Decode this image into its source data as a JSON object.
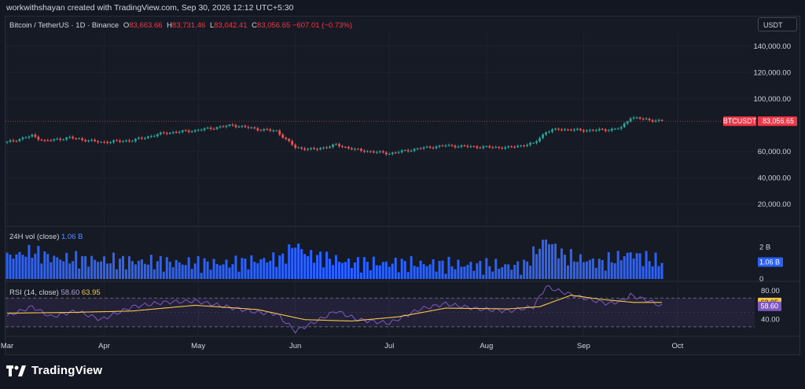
{
  "header": {
    "credit": "workwithshayan created with TradingView.com, Sep 30, 2026 12:12 UTC+5:30"
  },
  "legend": {
    "symbol": "Bitcoin / TetherUS · 1D · Binance",
    "open": "83,663.66",
    "high": "83,731.46",
    "low": "83,042.41",
    "close": "83,056.65",
    "change": "−607.01 (−0.73%)"
  },
  "currency": "USDT",
  "volume_legend": {
    "label": "24H vol (close)",
    "value": "1.06 B"
  },
  "rsi_legend": {
    "label": "RSI (14, close)",
    "rsi": "58.60",
    "ma": "63.95"
  },
  "brand": {
    "name": "TradingView"
  },
  "colors": {
    "up": "#26a69a",
    "down": "#ef5350",
    "volume": "#2962ff",
    "rsi": "#7e57c2",
    "rsi_ma": "#f7c744"
  },
  "chart_data": [
    {
      "type": "candlestick",
      "title": "Bitcoin / TetherUS · 1D · Binance",
      "yticks": [
        "140,000.00",
        "120,000.00",
        "100,000.00",
        "60,000.00",
        "40,000.00",
        "20,000.00"
      ],
      "ytick_values": [
        140000,
        120000,
        100000,
        60000,
        40000,
        20000
      ],
      "ylim": [
        5000,
        150000
      ],
      "last_price_label": "BTCUSDT",
      "last_price": "83,056.65",
      "last_price_value": 83056.65,
      "xticks": [
        "Mar",
        "Apr",
        "May",
        "Jun",
        "Jul",
        "Aug",
        "Sep",
        "Oct"
      ],
      "xtick_positions": [
        0,
        31,
        61,
        92,
        122,
        153,
        184,
        214
      ],
      "days": 210,
      "close_anchors": [
        [
          0,
          67000
        ],
        [
          8,
          72000
        ],
        [
          12,
          68000
        ],
        [
          20,
          70500
        ],
        [
          30,
          67000
        ],
        [
          40,
          68500
        ],
        [
          50,
          74000
        ],
        [
          60,
          76000
        ],
        [
          72,
          80000
        ],
        [
          80,
          77000
        ],
        [
          86,
          75500
        ],
        [
          92,
          63000
        ],
        [
          98,
          61500
        ],
        [
          105,
          65000
        ],
        [
          112,
          61000
        ],
        [
          122,
          58500
        ],
        [
          132,
          62500
        ],
        [
          140,
          64500
        ],
        [
          150,
          63500
        ],
        [
          160,
          63000
        ],
        [
          168,
          66000
        ],
        [
          172,
          75000
        ],
        [
          176,
          77000
        ],
        [
          184,
          76000
        ],
        [
          192,
          76500
        ],
        [
          196,
          78000
        ],
        [
          199,
          86000
        ],
        [
          205,
          84000
        ],
        [
          209,
          83056
        ]
      ]
    },
    {
      "type": "bar",
      "name": "24H vol (close)",
      "ytick_labels": [
        "2 B",
        "0"
      ],
      "ytick_values": [
        2,
        0
      ],
      "ylim": [
        0,
        3.2
      ],
      "last_value": 1.06,
      "last_label": "1.06 B",
      "volume_anchors": [
        [
          0,
          1.4
        ],
        [
          8,
          1.7
        ],
        [
          15,
          1.3
        ],
        [
          25,
          1.2
        ],
        [
          40,
          1.1
        ],
        [
          55,
          1.0
        ],
        [
          70,
          0.95
        ],
        [
          88,
          1.3
        ],
        [
          92,
          2.2
        ],
        [
          96,
          1.5
        ],
        [
          110,
          1.0
        ],
        [
          130,
          0.95
        ],
        [
          150,
          0.85
        ],
        [
          165,
          0.8
        ],
        [
          172,
          2.5
        ],
        [
          178,
          1.4
        ],
        [
          190,
          1.0
        ],
        [
          199,
          1.6
        ],
        [
          205,
          1.2
        ],
        [
          209,
          1.06
        ]
      ]
    },
    {
      "type": "line",
      "name": "RSI (14, close)",
      "ytick_labels": [
        "80.00",
        "40.00"
      ],
      "ytick_values": [
        80,
        40
      ],
      "band_lines": [
        70,
        30
      ],
      "ylim": [
        20,
        90
      ],
      "rsi_value": 58.6,
      "rsi_label": "58.60",
      "ma_value": 63.95,
      "ma_label": "63.95",
      "rsi_anchors": [
        [
          0,
          45
        ],
        [
          8,
          58
        ],
        [
          14,
          44
        ],
        [
          22,
          52
        ],
        [
          30,
          40
        ],
        [
          40,
          58
        ],
        [
          50,
          64
        ],
        [
          60,
          66
        ],
        [
          70,
          58
        ],
        [
          80,
          50
        ],
        [
          86,
          48
        ],
        [
          92,
          24
        ],
        [
          96,
          32
        ],
        [
          105,
          52
        ],
        [
          112,
          40
        ],
        [
          122,
          35
        ],
        [
          132,
          55
        ],
        [
          140,
          62
        ],
        [
          150,
          55
        ],
        [
          160,
          52
        ],
        [
          168,
          58
        ],
        [
          172,
          86
        ],
        [
          176,
          80
        ],
        [
          184,
          70
        ],
        [
          192,
          62
        ],
        [
          196,
          66
        ],
        [
          199,
          74
        ],
        [
          205,
          66
        ],
        [
          209,
          58.6
        ]
      ],
      "ma_anchors": [
        [
          0,
          49
        ],
        [
          20,
          50
        ],
        [
          40,
          52
        ],
        [
          60,
          60
        ],
        [
          80,
          54
        ],
        [
          95,
          40
        ],
        [
          110,
          38
        ],
        [
          125,
          44
        ],
        [
          140,
          56
        ],
        [
          160,
          55
        ],
        [
          170,
          58
        ],
        [
          180,
          74
        ],
        [
          190,
          68
        ],
        [
          200,
          64
        ],
        [
          209,
          63.95
        ]
      ]
    }
  ]
}
